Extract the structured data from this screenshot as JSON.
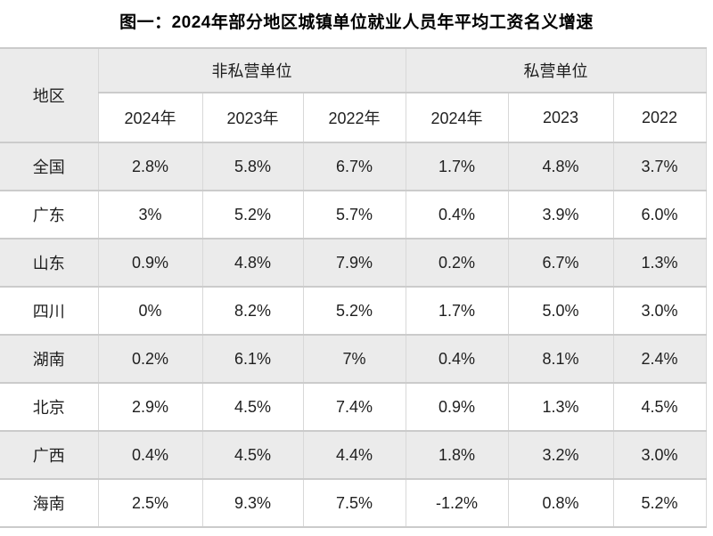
{
  "title": "图一：2024年部分地区城镇单位就业人员年平均工资名义增速",
  "table": {
    "region_header": "地区",
    "groups": [
      {
        "label": "非私营单位",
        "years": [
          "2024年",
          "2023年",
          "2022年"
        ]
      },
      {
        "label": "私营单位",
        "years": [
          "2024年",
          "2023",
          "2022"
        ]
      }
    ],
    "rows": [
      {
        "region": "全国",
        "values": [
          "2.8%",
          "5.8%",
          "6.7%",
          "1.7%",
          "4.8%",
          "3.7%"
        ]
      },
      {
        "region": "广东",
        "values": [
          "3%",
          "5.2%",
          "5.7%",
          "0.4%",
          "3.9%",
          "6.0%"
        ]
      },
      {
        "region": "山东",
        "values": [
          "0.9%",
          "4.8%",
          "7.9%",
          "0.2%",
          "6.7%",
          "1.3%"
        ]
      },
      {
        "region": "四川",
        "values": [
          "0%",
          "8.2%",
          "5.2%",
          "1.7%",
          "5.0%",
          "3.0%"
        ]
      },
      {
        "region": "湖南",
        "values": [
          "0.2%",
          "6.1%",
          "7%",
          "0.4%",
          "8.1%",
          "2.4%"
        ]
      },
      {
        "region": "北京",
        "values": [
          "2.9%",
          "4.5%",
          "7.4%",
          "0.9%",
          "1.3%",
          "4.5%"
        ]
      },
      {
        "region": "广西",
        "values": [
          "0.4%",
          "4.5%",
          "4.4%",
          "1.8%",
          "3.2%",
          "3.0%"
        ]
      },
      {
        "region": "海南",
        "values": [
          "2.5%",
          "9.3%",
          "7.5%",
          "-1.2%",
          "0.8%",
          "5.2%"
        ]
      }
    ],
    "colors": {
      "stripe_row_bg": "#ebebeb",
      "header_group_bg": "#ebebeb",
      "border_horizontal": "#cbcbcb",
      "border_vertical": "#d8d8d8",
      "text": "#1f1f1f",
      "title_text": "#000000"
    }
  },
  "chart_data": {
    "type": "table",
    "title": "图一：2024年部分地区城镇单位就业人员年平均工资名义增速",
    "unit": "percent (nominal growth of average annual wage)",
    "column_groups": [
      {
        "group": "非私营单位",
        "columns": [
          "2024年",
          "2023年",
          "2022年"
        ]
      },
      {
        "group": "私营单位",
        "columns": [
          "2024年",
          "2023",
          "2022"
        ]
      }
    ],
    "rows": [
      {
        "region": "全国",
        "non_private": [
          2.8,
          5.8,
          6.7
        ],
        "private": [
          1.7,
          4.8,
          3.7
        ]
      },
      {
        "region": "广东",
        "non_private": [
          3.0,
          5.2,
          5.7
        ],
        "private": [
          0.4,
          3.9,
          6.0
        ]
      },
      {
        "region": "山东",
        "non_private": [
          0.9,
          4.8,
          7.9
        ],
        "private": [
          0.2,
          6.7,
          1.3
        ]
      },
      {
        "region": "四川",
        "non_private": [
          0.0,
          8.2,
          5.2
        ],
        "private": [
          1.7,
          5.0,
          3.0
        ]
      },
      {
        "region": "湖南",
        "non_private": [
          0.2,
          6.1,
          7.0
        ],
        "private": [
          0.4,
          8.1,
          2.4
        ]
      },
      {
        "region": "北京",
        "non_private": [
          2.9,
          4.5,
          7.4
        ],
        "private": [
          0.9,
          1.3,
          4.5
        ]
      },
      {
        "region": "广西",
        "non_private": [
          0.4,
          4.5,
          4.4
        ],
        "private": [
          1.8,
          3.2,
          3.0
        ]
      },
      {
        "region": "海南",
        "non_private": [
          2.5,
          9.3,
          7.5
        ],
        "private": [
          -1.2,
          0.8,
          5.2
        ]
      }
    ],
    "layout_hints": {
      "striped_rows": [
        "全国",
        "山东",
        "湖南",
        "广西"
      ],
      "last_row_cut_off_at_bottom": true
    }
  }
}
